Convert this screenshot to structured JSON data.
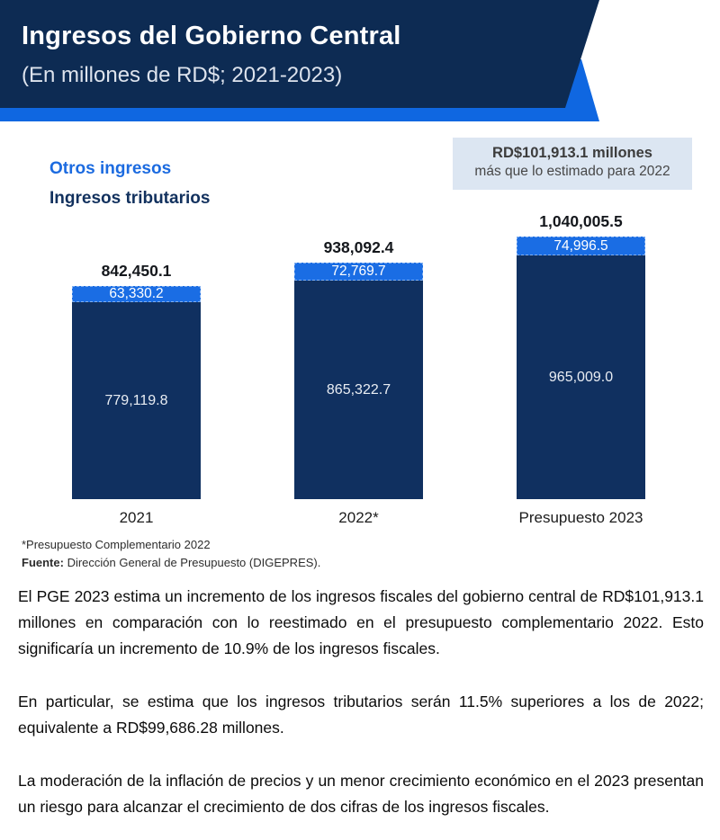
{
  "header": {
    "title": "Ingresos del Gobierno Central",
    "subtitle": "(En millones de RD$; 2021-2023)"
  },
  "legend": {
    "otros": "Otros ingresos",
    "tributarios": "Ingresos tributarios"
  },
  "callout": {
    "line1": "RD$101,913.1 millones",
    "line2": "más que lo estimado para 2022"
  },
  "chart_data": {
    "type": "bar",
    "stacked": true,
    "title": "Ingresos del Gobierno Central (En millones de RD$; 2021-2023)",
    "categories": [
      "2021",
      "2022*",
      "Presupuesto 2023"
    ],
    "series": [
      {
        "name": "Ingresos tributarios",
        "color": "#103060",
        "values": [
          779119.8,
          865322.7,
          965009.0
        ],
        "labels": [
          "779,119.8",
          "865,322.7",
          "965,009.0"
        ]
      },
      {
        "name": "Otros ingresos",
        "color": "#1A6DE4",
        "values": [
          63330.2,
          72769.7,
          74996.5
        ],
        "labels": [
          "63,330.2",
          "72,769.7",
          "74,996.5"
        ]
      }
    ],
    "totals": [
      842450.1,
      938092.4,
      1040005.5
    ],
    "total_labels": [
      "842,450.1",
      "938,092.4",
      "1,040,005.5"
    ],
    "xlabel": "",
    "ylabel": "",
    "ylim": [
      0,
      1040005.5
    ],
    "grid": false,
    "legend_position": "top-left"
  },
  "footnotes": {
    "note": "*Presupuesto Complementario 2022",
    "source_label": "Fuente:",
    "source_text": " Dirección General de Presupuesto (DIGEPRES)."
  },
  "body": {
    "p1": "El PGE 2023 estima un incremento de los ingresos fiscales del gobierno central de RD$101,913.1 millones en comparación con lo reestimado en el presupuesto complementario 2022. Esto significaría un incremento de 10.9% de los ingresos fiscales.",
    "p2": "En particular, se estima que los ingresos tributarios serán 11.5% superiores a los de 2022; equivalente a RD$99,686.28 millones.",
    "p3": "La moderación de la inflación de precios y un menor crecimiento económico en el 2023 presentan un riesgo para alcanzar el crecimiento de dos cifras de los ingresos fiscales."
  },
  "colors": {
    "banner_navy": "#0D2B53",
    "banner_blue": "#0F67E1",
    "bar_navy": "#103060",
    "bar_blue": "#1A6DE4",
    "callout_bg": "#DCE6F2",
    "legend_blue": "#1C6BE0",
    "legend_navy": "#12315E"
  }
}
